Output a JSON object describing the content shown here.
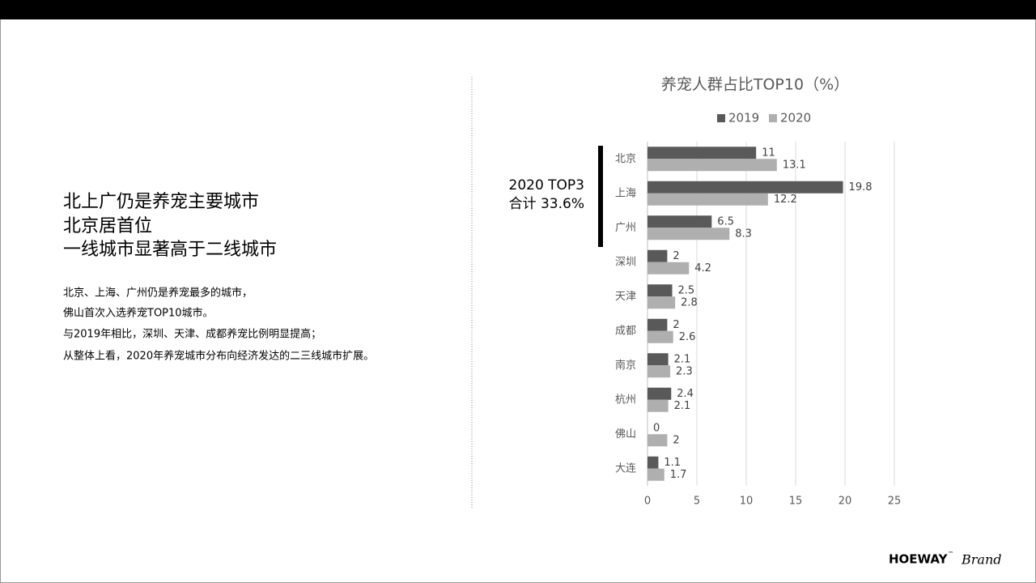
{
  "slide": {
    "heading": [
      "北上广仍是养宠主要城市",
      "北京居首位",
      "一线城市显著高于二线城市"
    ],
    "body": [
      "北京、上海、广州仍是养宠最多的城市，",
      "佛山首次入选养宠TOP10城市。",
      "与2019年相比，深圳、天津、成都养宠比例明显提高；",
      "从整体上看，2020年养宠城市分布向经济发达的二三线城市扩展。"
    ],
    "logo": "HOEWAY",
    "logo_mark": "™",
    "logo_script": "Brand"
  },
  "chart_data": {
    "type": "bar",
    "orientation": "horizontal",
    "title": "养宠人群占比TOP10（%）",
    "categories": [
      "北京",
      "上海",
      "广州",
      "深圳",
      "天津",
      "成都",
      "南京",
      "杭州",
      "佛山",
      "大连"
    ],
    "series": [
      {
        "name": "2019",
        "color": "#595959",
        "values": [
          11,
          19.8,
          6.5,
          2,
          2.5,
          2,
          2.1,
          2.4,
          0,
          1.1
        ]
      },
      {
        "name": "2020",
        "color": "#afafaf",
        "values": [
          13.1,
          12.2,
          8.3,
          4.2,
          2.8,
          2.6,
          2.3,
          2.1,
          2,
          1.7
        ]
      }
    ],
    "xlim": [
      0,
      25
    ],
    "xticks": [
      0,
      5,
      10,
      15,
      20,
      25
    ],
    "grid": true,
    "legend": "top",
    "annotation": [
      "2020 TOP3",
      "合计 33.6%"
    ]
  }
}
